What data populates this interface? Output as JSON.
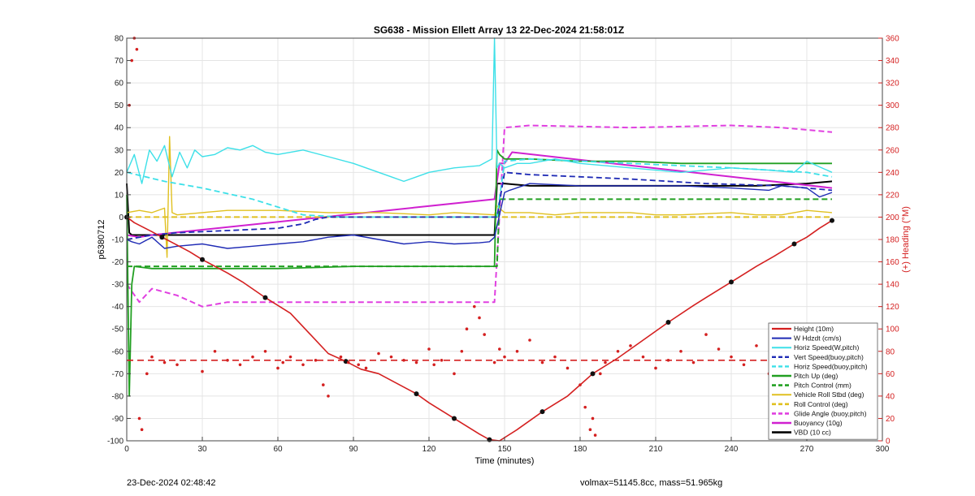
{
  "chart_data": {
    "type": "line",
    "title": "SG638 - Mission Ellett Array 13 22-Dec-2024 21:58:01Z",
    "xlabel": "Time (minutes)",
    "ylabel": "p6380712",
    "y2label": "(+) Heading (°M)",
    "xlim": [
      0,
      300
    ],
    "ylim": [
      -100,
      80
    ],
    "y2lim": [
      0,
      360
    ],
    "xticks": [
      0,
      30,
      60,
      90,
      120,
      150,
      180,
      210,
      240,
      270,
      300
    ],
    "yticks": [
      -100,
      -90,
      -80,
      -70,
      -60,
      -50,
      -40,
      -30,
      -20,
      -10,
      0,
      10,
      20,
      30,
      40,
      50,
      60,
      70,
      80
    ],
    "y2ticks": [
      0,
      20,
      40,
      60,
      80,
      100,
      120,
      140,
      160,
      180,
      200,
      220,
      240,
      260,
      280,
      300,
      320,
      340,
      360
    ],
    "grid": true,
    "legend_position": "bottom-right",
    "series": [
      {
        "name": "Height (10m)",
        "color": "#d42020",
        "style": "solid",
        "width": 1.6,
        "axis": "left",
        "x": [
          0,
          3,
          10,
          14,
          20,
          25,
          30,
          40,
          46,
          55,
          65,
          80,
          87,
          93,
          100,
          115,
          120,
          125,
          130,
          135,
          140,
          144,
          148,
          155,
          165,
          175,
          180,
          185,
          195,
          205,
          215,
          225,
          230,
          240,
          250,
          257,
          265,
          270,
          275,
          280
        ],
        "y": [
          0,
          -2.5,
          -6.5,
          -9,
          -12.5,
          -15.5,
          -19,
          -25,
          -29,
          -36,
          -43,
          -61,
          -64.5,
          -68,
          -70,
          -79,
          -83,
          -86.5,
          -90,
          -93.5,
          -97,
          -99.5,
          -100,
          -95,
          -87,
          -80,
          -75,
          -70,
          -63,
          -55,
          -47,
          -39.5,
          -36,
          -29,
          -22,
          -17.5,
          -12,
          -9,
          -5,
          -1.5
        ]
      },
      {
        "name": "W Hdzdt (cm/s)",
        "color": "#1f2bb5",
        "style": "solid",
        "width": 1.4,
        "axis": "left",
        "x": [
          0,
          2,
          5,
          10,
          15,
          20,
          30,
          40,
          50,
          60,
          70,
          80,
          90,
          100,
          110,
          120,
          130,
          140,
          144,
          146,
          150,
          152,
          160,
          180,
          200,
          220,
          240,
          255,
          260,
          270,
          275,
          280
        ],
        "y": [
          -10,
          -11,
          -12,
          -9,
          -14,
          -13,
          -12,
          -14,
          -13,
          -12,
          -11,
          -9,
          -8,
          -10,
          -12,
          -11,
          -12,
          -11.5,
          -11,
          -9,
          11,
          12,
          15,
          14,
          14,
          14,
          13,
          12,
          14,
          13,
          9,
          11
        ]
      },
      {
        "name": "Horiz Speed(W,pitch)",
        "color": "#3de0e8",
        "style": "solid",
        "width": 1.4,
        "axis": "left",
        "x": [
          0,
          3,
          6,
          9,
          12,
          15,
          18,
          21,
          24,
          27,
          30,
          35,
          40,
          45,
          50,
          55,
          60,
          70,
          80,
          90,
          100,
          105,
          110,
          120,
          130,
          140,
          145,
          146,
          147,
          148,
          150,
          155,
          160,
          170,
          180,
          200,
          220,
          240,
          255,
          265,
          270,
          280
        ],
        "y": [
          20,
          28,
          15,
          30,
          25,
          32,
          18,
          29,
          22,
          30,
          27,
          28,
          31,
          30,
          32,
          29,
          28,
          30,
          27,
          24,
          20,
          18,
          16,
          20,
          22,
          23,
          26,
          80,
          22,
          24,
          22,
          24,
          24,
          26,
          24,
          22,
          20,
          22,
          21,
          20,
          25,
          20
        ]
      },
      {
        "name": "Vert Speed(buoy,pitch)",
        "color": "#1f2bb5",
        "style": "dashed",
        "width": 1.8,
        "axis": "left",
        "x": [
          0,
          10,
          20,
          40,
          60,
          70,
          75,
          80,
          90,
          110,
          130,
          147,
          150,
          160,
          180,
          200,
          230,
          260,
          280
        ],
        "y": [
          -10,
          -8,
          -7,
          -6,
          -5,
          -3,
          -1,
          0,
          0,
          0,
          0,
          0,
          20,
          19,
          18,
          17,
          15,
          14,
          12
        ]
      },
      {
        "name": "Horiz Speed(buoy,pitch)",
        "color": "#3de0e8",
        "style": "dashed",
        "width": 1.8,
        "axis": "left",
        "x": [
          0,
          15,
          30,
          50,
          70,
          85,
          105,
          120,
          147,
          150,
          160,
          200,
          240,
          270,
          280
        ],
        "y": [
          20,
          16,
          13,
          8,
          1,
          0,
          0,
          0,
          0,
          25,
          26,
          24,
          22,
          20,
          18
        ]
      },
      {
        "name": "Pitch Up (deg)",
        "color": "#22a022",
        "style": "solid",
        "width": 1.8,
        "axis": "left",
        "x": [
          0,
          1,
          2,
          3,
          10,
          30,
          60,
          90,
          120,
          145,
          146,
          147,
          148,
          150,
          160,
          180,
          200,
          220,
          240,
          260,
          280
        ],
        "y": [
          10,
          -80,
          -30,
          -22,
          -23,
          -23,
          -23,
          -22,
          -22,
          -22,
          -22,
          30,
          28,
          26,
          26,
          25,
          25,
          24,
          24,
          24,
          24
        ]
      },
      {
        "name": "Pitch Control (mm)",
        "color": "#22a022",
        "style": "dashed",
        "width": 2,
        "axis": "left",
        "x": [
          0,
          3,
          40,
          80,
          120,
          147,
          148,
          150,
          200,
          240,
          280
        ],
        "y": [
          -22,
          -22,
          -22,
          -22,
          -22,
          -22,
          8,
          8,
          8,
          8,
          8
        ]
      },
      {
        "name": "Vehicle Roll Stbd (deg)",
        "color": "#e0c020",
        "style": "solid",
        "width": 1.4,
        "axis": "left",
        "x": [
          0,
          5,
          10,
          15,
          16,
          17,
          18,
          20,
          30,
          40,
          60,
          80,
          100,
          120,
          130,
          146,
          147,
          150,
          160,
          170,
          180,
          190,
          200,
          210,
          220,
          240,
          250,
          260,
          270,
          280
        ],
        "y": [
          2,
          3,
          2,
          4,
          -18,
          36,
          2,
          1,
          2,
          3,
          3,
          2,
          2,
          1,
          2,
          1,
          5,
          2,
          2,
          1,
          2,
          2,
          2,
          1,
          1,
          2,
          1,
          1,
          3,
          2
        ]
      },
      {
        "name": "Roll Control (deg)",
        "color": "#e0c020",
        "style": "dashed",
        "width": 2,
        "axis": "left",
        "x": [
          0,
          50,
          100,
          146,
          150,
          200,
          250,
          280
        ],
        "y": [
          0,
          0,
          0,
          0,
          0,
          0,
          0,
          0
        ]
      },
      {
        "name": "Glide Angle (buoy,pitch)",
        "color": "#e040e0",
        "style": "dashed",
        "width": 2,
        "axis": "left",
        "x": [
          0,
          5,
          10,
          20,
          30,
          40,
          146,
          150,
          160,
          200,
          240,
          260,
          280
        ],
        "y": [
          -30,
          -38,
          -32,
          -35,
          -40,
          -38,
          -38,
          40,
          41,
          40,
          41,
          40,
          38
        ]
      },
      {
        "name": "Buoyancy (10g)",
        "color": "#d020d0",
        "style": "solid",
        "width": 2,
        "axis": "left",
        "x": [
          0,
          5,
          10,
          146,
          148,
          150,
          153,
          280
        ],
        "y": [
          -8,
          -9,
          -8,
          8,
          24,
          24,
          29,
          13
        ]
      },
      {
        "name": "VBD (10 cc)",
        "color": "#000000",
        "style": "solid",
        "width": 2,
        "axis": "left",
        "x": [
          0,
          1,
          2,
          100,
          146,
          147,
          150,
          160,
          200,
          240,
          250,
          270,
          280
        ],
        "y": [
          15,
          -7,
          -8,
          -8,
          -8,
          15,
          15,
          14,
          14,
          14,
          14,
          15,
          16
        ]
      }
    ],
    "heading_mean": 72,
    "heading_points": {
      "name": "Heading",
      "color": "#d42020",
      "axis": "right",
      "x": [
        1,
        2,
        3,
        4,
        5,
        6,
        8,
        10,
        15,
        20,
        30,
        35,
        40,
        45,
        50,
        55,
        60,
        62,
        65,
        70,
        75,
        78,
        80,
        85,
        88,
        92,
        95,
        100,
        105,
        110,
        115,
        120,
        122,
        125,
        130,
        133,
        135,
        138,
        140,
        142,
        146,
        148,
        150,
        155,
        160,
        165,
        170,
        175,
        180,
        182,
        184,
        185,
        186,
        188,
        190,
        195,
        200,
        205,
        210,
        215,
        220,
        225,
        230,
        235,
        240,
        245,
        250,
        255,
        260,
        265,
        270,
        275
      ],
      "y": [
        300,
        340,
        360,
        350,
        20,
        10,
        60,
        75,
        70,
        68,
        62,
        80,
        72,
        68,
        75,
        80,
        65,
        70,
        75,
        68,
        72,
        50,
        40,
        75,
        70,
        68,
        65,
        78,
        75,
        72,
        70,
        82,
        68,
        72,
        60,
        80,
        100,
        120,
        110,
        95,
        70,
        82,
        75,
        80,
        90,
        70,
        75,
        65,
        50,
        30,
        10,
        20,
        5,
        60,
        70,
        80,
        85,
        75,
        65,
        72,
        80,
        70,
        95,
        82,
        75,
        68,
        85,
        60,
        50,
        65,
        70,
        72
      ]
    }
  },
  "footer": {
    "left": "23-Dec-2024 02:48:42",
    "right": "volmax=51145.8cc, mass=51.965kg"
  }
}
